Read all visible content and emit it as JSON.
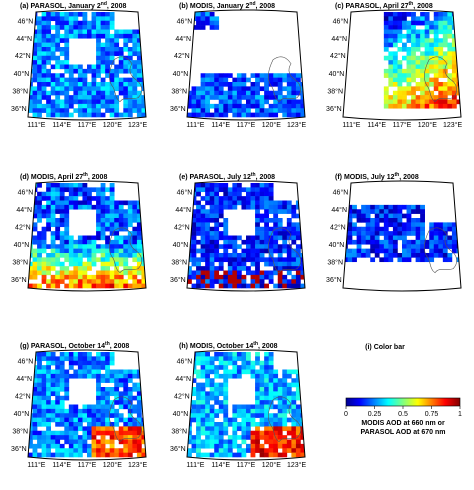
{
  "chart_data": {
    "type": "heatmap",
    "colormap": [
      "#00008f",
      "#0000ff",
      "#0080ff",
      "#00ffff",
      "#80ff80",
      "#ffff00",
      "#ff8000",
      "#ff0000",
      "#800000"
    ],
    "lon_ticks": [
      111,
      114,
      117,
      120,
      123
    ],
    "lat_ticks": [
      36,
      38,
      40,
      42,
      44,
      46
    ],
    "lon_tick_labels": [
      "111°E",
      "114°E",
      "117°E",
      "120°E",
      "123°E"
    ],
    "lat_tick_labels": [
      "36°N",
      "38°N",
      "40°N",
      "42°N",
      "44°N",
      "46°N"
    ],
    "lon_range": [
      110,
      124
    ],
    "lat_range": [
      35,
      47
    ],
    "panels": [
      {
        "id": "a",
        "title_pre": "(a) PARASOL, January 2",
        "title_sup": "nd",
        "title_post": ", 2008",
        "sensor": "PARASOL",
        "date": "2008-01-02",
        "coverage": "wide",
        "mean_aod": 0.25,
        "show_lon": true,
        "show_lat": true
      },
      {
        "id": "b",
        "title_pre": "(b) MODIS, January 2",
        "title_sup": "nd",
        "title_post": ", 2008",
        "sensor": "MODIS",
        "date": "2008-01-02",
        "coverage": "south-strip",
        "mean_aod": 0.2,
        "show_lon": true,
        "show_lat": true
      },
      {
        "id": "c",
        "title_pre": "(c) PARASOL, April 27",
        "title_sup": "th",
        "title_post": ", 2008",
        "sensor": "PARASOL",
        "date": "2008-04-27",
        "coverage": "east",
        "mean_aod": 0.7,
        "show_lon": true,
        "show_lat": true
      },
      {
        "id": "d",
        "title_pre": "(d) MODIS, April 27",
        "title_sup": "th",
        "title_post": ", 2008",
        "sensor": "MODIS",
        "date": "2008-04-27",
        "coverage": "wide",
        "mean_aod": 0.55,
        "show_lon": false,
        "show_lat": true
      },
      {
        "id": "e",
        "title_pre": "(e) PARASOL, July 12",
        "title_sup": "th",
        "title_post": ", 2008",
        "sensor": "PARASOL",
        "date": "2008-07-12",
        "coverage": "wide",
        "mean_aod": 0.15,
        "show_lon": false,
        "show_lat": true
      },
      {
        "id": "f",
        "title_pre": "(f) MODIS, July 12",
        "title_sup": "th",
        "title_post": ", 2008",
        "sensor": "MODIS",
        "date": "2008-07-12",
        "coverage": "middle",
        "mean_aod": 0.15,
        "show_lon": false,
        "show_lat": true
      },
      {
        "id": "g",
        "title_pre": "(g) PARASOL, October 14",
        "title_sup": "th",
        "title_post": ", 2008",
        "sensor": "PARASOL",
        "date": "2008-10-14",
        "coverage": "wide",
        "mean_aod": 0.35,
        "show_lon": true,
        "show_lat": true
      },
      {
        "id": "h",
        "title_pre": "(h) MODIS, October 14",
        "title_sup": "th",
        "title_post": ", 2008",
        "sensor": "MODIS",
        "date": "2008-10-14",
        "coverage": "wide",
        "mean_aod": 0.4,
        "show_lon": true,
        "show_lat": true
      }
    ],
    "colorbar": {
      "title": "(i) Color bar",
      "ticks": [
        "0",
        "0.25",
        "0.5",
        "0.75",
        "1"
      ],
      "tick_values": [
        0,
        0.25,
        0.5,
        0.75,
        1
      ],
      "label_line1": "MODIS AOD at 660 nm or",
      "label_line2": "PARASOL AOD at 670 nm"
    }
  }
}
